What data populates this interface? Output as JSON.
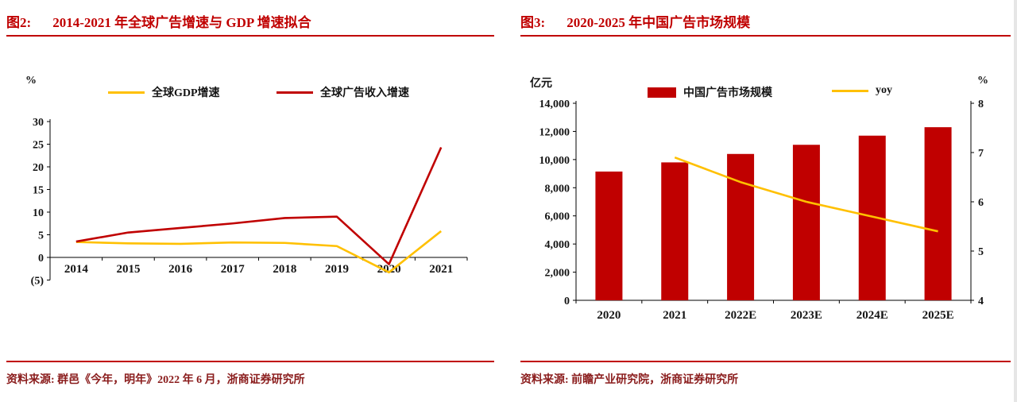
{
  "colors": {
    "accent": "#c00000",
    "source_text": "#8a1c1c",
    "bar_red": "#c00000",
    "line_yellow": "#ffc000"
  },
  "figure2": {
    "label": "图2:",
    "title": "2014-2021 年全球广告增速与 GDP 增速拟合",
    "source": "资料来源: 群邑《今年，明年》2022 年 6 月，浙商证券研究所"
  },
  "figure3": {
    "label": "图3:",
    "title": "2020-2025 年中国广告市场规模",
    "source": "资料来源: 前瞻产业研究院，浙商证券研究所"
  },
  "chart_data": [
    {
      "type": "line",
      "title": "2014-2021 年全球广告增速与 GDP 增速拟合",
      "ylabel": "%",
      "ylim": [
        -5,
        30
      ],
      "grid": false,
      "legend_position": "top",
      "categories": [
        "2014",
        "2015",
        "2016",
        "2017",
        "2018",
        "2019",
        "2020",
        "2021"
      ],
      "series": [
        {
          "name": "全球GDP增速",
          "color": "#ffc000",
          "values": [
            3.4,
            3.1,
            3.0,
            3.3,
            3.2,
            2.5,
            -3.3,
            5.8
          ]
        },
        {
          "name": "全球广告收入增速",
          "color": "#c00000",
          "values": [
            3.5,
            5.5,
            6.5,
            7.5,
            8.7,
            9.0,
            -1.5,
            24.3
          ]
        }
      ],
      "ytick_values": [
        -5,
        0,
        5,
        10,
        15,
        20,
        25,
        30
      ],
      "ytick_labels": [
        "(5)",
        "0",
        "5",
        "10",
        "15",
        "20",
        "25",
        "30"
      ]
    },
    {
      "type": "bar",
      "title": "2020-2025 年中国广告市场规模",
      "left_axis_label": "亿元",
      "right_axis_label": "%",
      "left_ylim": [
        0,
        14000
      ],
      "right_ylim": [
        4,
        8
      ],
      "grid": false,
      "legend_position": "top",
      "categories": [
        "2020",
        "2021",
        "2022E",
        "2023E",
        "2024E",
        "2025E"
      ],
      "bar_series": {
        "name": "中国广告市场规模",
        "color": "#c00000",
        "values": [
          9150,
          9800,
          10400,
          11050,
          11700,
          12300
        ]
      },
      "line_series": {
        "name": "yoy",
        "color": "#ffc000",
        "axis": "right",
        "values": [
          null,
          6.9,
          6.4,
          6.0,
          5.7,
          5.4
        ]
      },
      "left_ytick_values": [
        0,
        2000,
        4000,
        6000,
        8000,
        10000,
        12000,
        14000
      ],
      "left_ytick_labels": [
        "0",
        "2,000",
        "4,000",
        "6,000",
        "8,000",
        "10,000",
        "12,000",
        "14,000"
      ],
      "right_ytick_values": [
        4,
        5,
        6,
        7,
        8
      ],
      "right_ytick_labels": [
        "4",
        "5",
        "6",
        "7",
        "8"
      ]
    }
  ]
}
